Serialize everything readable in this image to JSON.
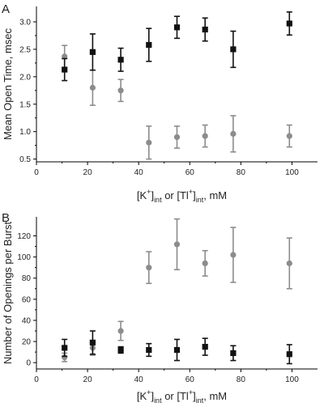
{
  "chart_data": [
    {
      "type": "scatter",
      "panel_label": "A",
      "ylabel": "Mean Open Time, msec",
      "xlabel_parts": [
        "[K",
        "+",
        "]",
        "int",
        " or [Tl",
        "+",
        "]",
        "int",
        ", mM"
      ],
      "xlim": [
        0,
        110
      ],
      "ylim": [
        0.45,
        3.28
      ],
      "xticks": [
        0,
        20,
        40,
        60,
        80,
        100
      ],
      "yticks": [
        0.5,
        1.0,
        1.5,
        2.0,
        2.5,
        3.0
      ],
      "ytick_labels": [
        "0.5",
        "1.0",
        "1.5",
        "2.0",
        "2.5",
        "3.0"
      ],
      "grid": false,
      "series": [
        {
          "marker": "circle",
          "color": "#8c8c8c",
          "x": [
            11,
            22,
            33,
            44,
            55,
            66,
            77,
            99
          ],
          "y": [
            2.37,
            1.8,
            1.75,
            0.8,
            0.9,
            0.92,
            0.96,
            0.92
          ],
          "err": [
            0.2,
            0.32,
            0.2,
            0.3,
            0.2,
            0.2,
            0.33,
            0.2
          ]
        },
        {
          "marker": "square",
          "color": "#111111",
          "x": [
            11,
            22,
            33,
            44,
            55,
            66,
            77,
            99
          ],
          "y": [
            2.13,
            2.45,
            2.31,
            2.58,
            2.9,
            2.86,
            2.5,
            2.97
          ],
          "err": [
            0.2,
            0.33,
            0.21,
            0.3,
            0.2,
            0.21,
            0.33,
            0.21
          ]
        }
      ]
    },
    {
      "type": "scatter",
      "panel_label": "B",
      "ylabel": "Number of Openings per Burst",
      "xlabel_parts": [
        "[K",
        "+",
        "]",
        "int",
        " or [Tl",
        "+",
        "]",
        "int",
        ", mM"
      ],
      "xlim": [
        0,
        110
      ],
      "ylim": [
        -6,
        138
      ],
      "xticks": [
        0,
        20,
        40,
        60,
        80,
        100
      ],
      "yticks": [
        0,
        20,
        40,
        60,
        80,
        100,
        120
      ],
      "ytick_labels": [
        "0",
        "20",
        "40",
        "60",
        "80",
        "100",
        "120"
      ],
      "grid": false,
      "series": [
        {
          "marker": "circle",
          "color": "#8c8c8c",
          "x": [
            11,
            22,
            33,
            44,
            55,
            66,
            77,
            99
          ],
          "y": [
            5,
            14,
            30,
            90,
            112,
            94,
            102,
            94
          ],
          "err": [
            4,
            7,
            9,
            15,
            24,
            12,
            26,
            24
          ]
        },
        {
          "marker": "square",
          "color": "#111111",
          "x": [
            11,
            22,
            33,
            44,
            55,
            66,
            77,
            99
          ],
          "y": [
            14,
            19,
            12,
            12,
            12,
            15,
            9,
            8
          ],
          "err": [
            8,
            11,
            3,
            6,
            10,
            8,
            7,
            9
          ]
        }
      ]
    }
  ]
}
